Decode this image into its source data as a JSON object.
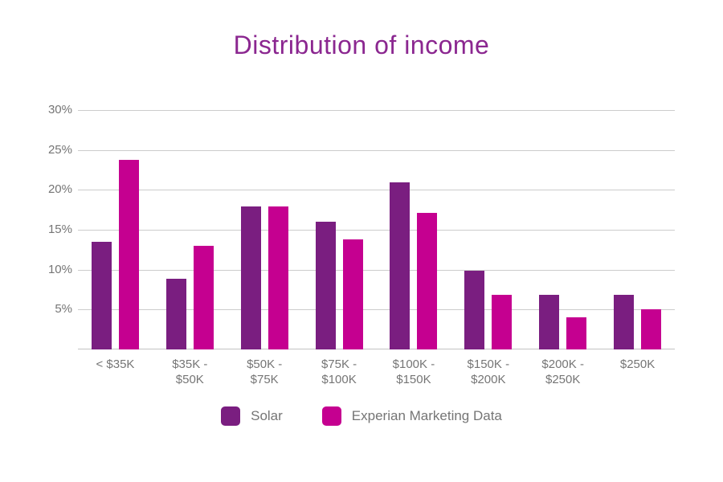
{
  "colors": {
    "title": "#8B2790",
    "solar_bar": "#7A1E80",
    "experian_bar": "#C50090",
    "axis_text": "#757575",
    "gridline": "#CCCCCC",
    "background": "#FFFFFF"
  },
  "chart_data": {
    "type": "bar",
    "title": "Distribution of income",
    "xlabel": "",
    "ylabel": "",
    "ylim": [
      0,
      30
    ],
    "grid": true,
    "legend_position": "bottom",
    "y_tick_labels": [
      "30%",
      "25%",
      "20%",
      "15%",
      "10%",
      "5%"
    ],
    "y_tick_values": [
      30,
      25,
      20,
      15,
      10,
      5
    ],
    "categories": [
      "< $35K",
      "$35K - $50K",
      "$50K - $75K",
      "$75K - $100K",
      "$100K - $150K",
      "$150K - $200K",
      "$200K - $250K",
      "$250K"
    ],
    "category_lines": [
      [
        "< $35K"
      ],
      [
        "$35K -",
        "$50K"
      ],
      [
        "$50K -",
        "$75K"
      ],
      [
        "$75K -",
        "$100K"
      ],
      [
        "$100K -",
        "$150K"
      ],
      [
        "$150K -",
        "$200K"
      ],
      [
        "$200K -",
        "$250K"
      ],
      [
        "$250K"
      ]
    ],
    "series": [
      {
        "name": "Solar",
        "color": "#7A1E80",
        "values": [
          13.5,
          8.9,
          17.9,
          16.0,
          20.9,
          9.9,
          6.8,
          6.8
        ]
      },
      {
        "name": "Experian Marketing Data",
        "color": "#C50090",
        "values": [
          23.8,
          13.0,
          17.9,
          13.8,
          17.1,
          6.8,
          4.0,
          5.0
        ]
      }
    ]
  }
}
